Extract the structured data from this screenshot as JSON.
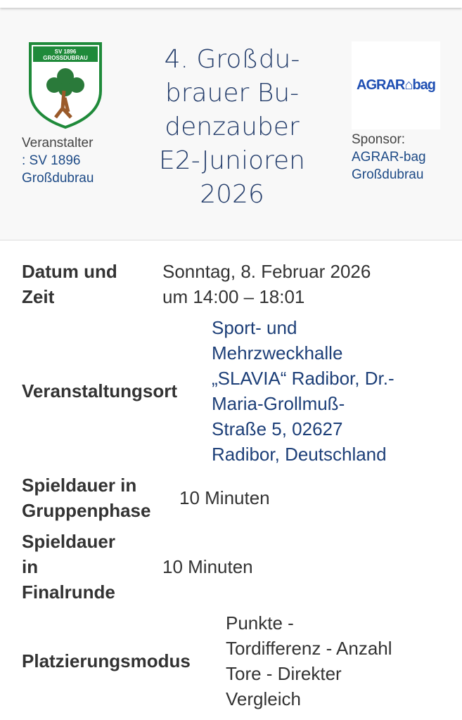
{
  "header": {
    "title": "4. Großdu-\nbrauer Bu-\ndenzauber\nE2-Junioren\n2026",
    "title_lines": [
      "4. Großdu-",
      "brauer Bu-",
      "denzauber",
      "E2-Junioren",
      "2026"
    ],
    "organizer_label": "Veranstalter",
    "organizer_name_lines": [
      ": SV 1896",
      "Großdubrau"
    ],
    "organizer_logo_text": "SV 1896 GROSSDUBRAU",
    "sponsor_label": "Sponsor:",
    "sponsor_name_lines": [
      "AGRAR-bag",
      "Großdubrau"
    ],
    "sponsor_logo_text": "AGRAR-bag"
  },
  "details": [
    {
      "label_lines": [
        "Datum und",
        "Zeit"
      ],
      "value_lines": [
        "Sonntag, 8. Februar 2026",
        "um 14:00 – 18:01"
      ]
    },
    {
      "label_lines": [
        "Veranstaltungsort"
      ],
      "value_lines": [
        "Sport- und",
        "Mehrzweckhalle",
        "„SLAVIA“ Radibor, Dr.-",
        "Maria-Grollmuß-",
        "Straße 5, 02627",
        "Radibor, Deutschland"
      ]
    },
    {
      "label_lines": [
        "Spieldauer in",
        "Gruppenphase"
      ],
      "value_lines": [
        "10 Minuten"
      ]
    },
    {
      "label_lines": [
        "Spieldauer",
        "in",
        "Finalrunde"
      ],
      "value_lines": [
        "10 Minuten"
      ]
    },
    {
      "label_lines": [
        "Platzierungsmodus"
      ],
      "value_lines": [
        "Punkte -",
        "Tordifferenz - Anzahl",
        "Tore - Direkter",
        "Vergleich"
      ]
    }
  ],
  "colors": {
    "title": "#243d6b",
    "link": "#1d3f78",
    "logo_green": "#1f8a3a"
  }
}
